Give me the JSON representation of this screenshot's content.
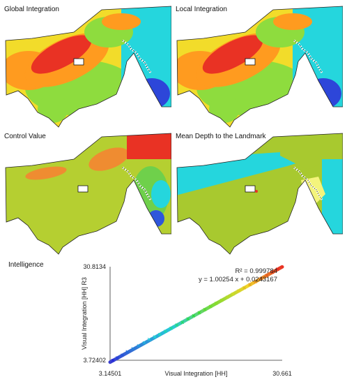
{
  "panels": {
    "global_integration": {
      "title": "Global Integration",
      "colors": {
        "base": "#f2dc2a",
        "left": "#ff9b1f",
        "hot": "#e93224",
        "mid": "#8edc3e",
        "cool": "#25d6dd",
        "deep": "#2d46d9"
      }
    },
    "local_integration": {
      "title": "Local Integration",
      "colors": {
        "base": "#f2dc2a",
        "left": "#ff9b1f",
        "hot": "#e93224",
        "mid": "#8edc3e",
        "cool": "#25d6dd",
        "deep": "#2d46d9"
      }
    },
    "control_value": {
      "title": "Control Value",
      "colors": {
        "base": "#b5cf31",
        "hot": "#e93224",
        "orange": "#ef8c31",
        "green": "#6fd04b",
        "cyan": "#25d6dd",
        "blue": "#2f56db"
      }
    },
    "mean_depth": {
      "title": "Mean Depth to the Landmark",
      "colors": {
        "base": "#a8c92f",
        "cyan": "#25d6dd",
        "pale": "#f4f47c",
        "red": "#e93224"
      }
    }
  },
  "intelligence": {
    "title": "Intelligence",
    "r_squared": "R² = 0.999784",
    "equation": "y = 1.00254 x + 0.0243167"
  },
  "chart_data": {
    "type": "scatter",
    "title": "Intelligence",
    "xlabel": "Visual Integration [HH]",
    "ylabel": "Visual Integration [HH] R3",
    "xlim": [
      3.14501,
      30.661
    ],
    "ylim": [
      3.72402,
      30.8134
    ],
    "x_tick_labels": [
      "3.14501",
      "30.661"
    ],
    "y_tick_labels": [
      "3.72402",
      "30.8134"
    ],
    "regression": {
      "slope": 1.00254,
      "intercept": 0.0243167,
      "r_squared": 0.999784
    },
    "points": [
      [
        3.6,
        3.7
      ],
      [
        4.3,
        4.4
      ],
      [
        5.1,
        5.2
      ],
      [
        5.9,
        6.2
      ],
      [
        6.8,
        7.1
      ],
      [
        7.7,
        7.9
      ],
      [
        8.6,
        8.8
      ],
      [
        9.4,
        9.8
      ],
      [
        10.3,
        10.5
      ],
      [
        11.1,
        11.2
      ],
      [
        12.0,
        12.1
      ],
      [
        12.9,
        13.0
      ],
      [
        13.8,
        13.9
      ],
      [
        14.7,
        14.7
      ],
      [
        15.6,
        15.7
      ],
      [
        16.5,
        16.6
      ],
      [
        17.4,
        17.5
      ],
      [
        18.3,
        18.4
      ],
      [
        19.2,
        19.3
      ],
      [
        20.1,
        20.2
      ],
      [
        21.0,
        21.1
      ],
      [
        21.9,
        22.0
      ],
      [
        22.8,
        22.9
      ],
      [
        23.7,
        23.8
      ],
      [
        24.6,
        24.7
      ],
      [
        25.5,
        25.6
      ],
      [
        26.4,
        26.5
      ],
      [
        27.3,
        27.4
      ],
      [
        28.2,
        28.3
      ],
      [
        29.1,
        29.2
      ],
      [
        29.9,
        30.1
      ]
    ]
  }
}
